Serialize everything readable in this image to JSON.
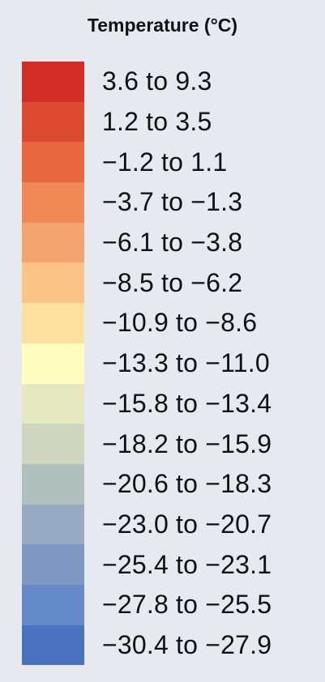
{
  "legend": {
    "title": "Temperature (°C)",
    "items": [
      {
        "label": "3.6 to 9.3",
        "color": "#d42d26"
      },
      {
        "label": "1.2 to 3.5",
        "color": "#dc4b2f"
      },
      {
        "label": "−1.2 to 1.1",
        "color": "#e7683e"
      },
      {
        "label": "−3.7 to −1.3",
        "color": "#ef8a57"
      },
      {
        "label": "−6.1 to −3.8",
        "color": "#f4a46e"
      },
      {
        "label": "−8.5 to −6.2",
        "color": "#f9c485"
      },
      {
        "label": "−10.9 to −8.6",
        "color": "#fde09d"
      },
      {
        "label": "−13.3 to −11.0",
        "color": "#fffec0"
      },
      {
        "label": "−15.8 to −13.4",
        "color": "#e6e8c2"
      },
      {
        "label": "−18.2 to −15.9",
        "color": "#ced6bf"
      },
      {
        "label": "−20.6 to −18.3",
        "color": "#b2c0bd"
      },
      {
        "label": "−23.0 to −20.7",
        "color": "#98abc3"
      },
      {
        "label": "−25.4 to −23.1",
        "color": "#7f98c2"
      },
      {
        "label": "−27.8 to −25.5",
        "color": "#6588c6"
      },
      {
        "label": "−30.4 to −27.9",
        "color": "#4a72be"
      }
    ]
  }
}
